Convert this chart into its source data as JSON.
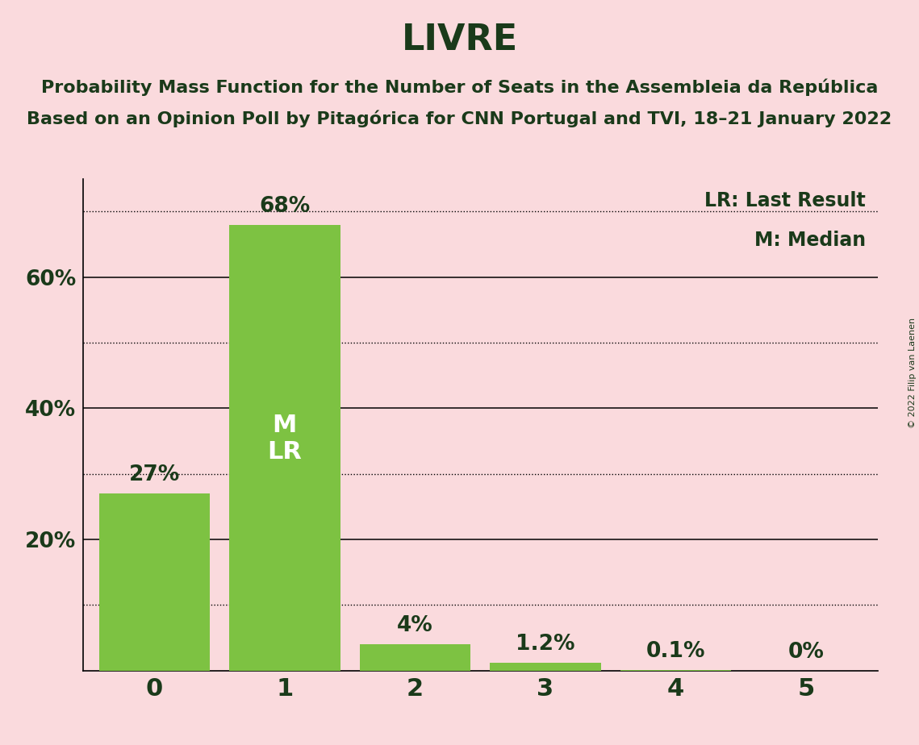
{
  "title": "LIVRE",
  "subtitle1": "Probability Mass Function for the Number of Seats in the Assembleia da República",
  "subtitle2": "Based on an Opinion Poll by Pitagórica for CNN Portugal and TVI, 18–21 January 2022",
  "copyright": "© 2022 Filip van Laenen",
  "categories": [
    0,
    1,
    2,
    3,
    4,
    5
  ],
  "values": [
    27,
    68,
    4,
    1.2,
    0.1,
    0
  ],
  "bar_labels": [
    "27%",
    "68%",
    "4%",
    "1.2%",
    "0.1%",
    "0%"
  ],
  "bar_color": "#7dc242",
  "background_color": "#fadadd",
  "title_color": "#1a3a1a",
  "white_color": "#ffffff",
  "median_bar_idx": 1,
  "solid_gridlines": [
    20,
    40,
    60
  ],
  "dotted_gridlines": [
    10,
    30,
    50,
    70
  ],
  "ytick_positions": [
    20,
    40,
    60
  ],
  "ytick_labels": [
    "20%",
    "40%",
    "60%"
  ],
  "legend_text_lr": "LR: Last Result",
  "legend_text_m": "M: Median",
  "ylim": [
    0,
    75
  ],
  "bar_width": 0.85,
  "title_fontsize": 32,
  "subtitle_fontsize": 16,
  "bar_label_fontsize": 19,
  "ml_fontsize": 22,
  "ytick_fontsize": 19,
  "xtick_fontsize": 22,
  "legend_fontsize": 17,
  "copyright_fontsize": 8
}
